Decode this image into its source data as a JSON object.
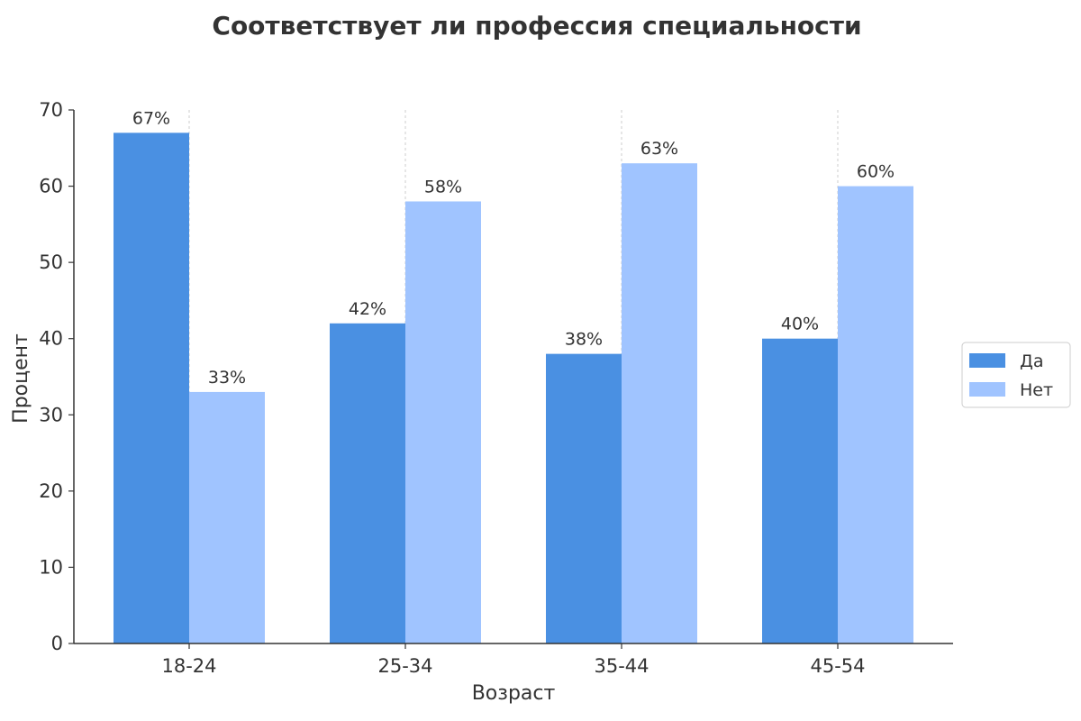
{
  "chart_data": {
    "type": "bar",
    "title": "Соответствует ли профессия специальности",
    "xlabel": "Возраст",
    "ylabel": "Процент",
    "categories": [
      "18-24",
      "25-34",
      "35-44",
      "45-54"
    ],
    "series": [
      {
        "name": "Да",
        "values": [
          67,
          42,
          38,
          40
        ],
        "labels": [
          "67%",
          "42%",
          "38%",
          "40%"
        ],
        "color": "#4a90e2"
      },
      {
        "name": "Нет",
        "values": [
          33,
          58,
          63,
          60
        ],
        "labels": [
          "33%",
          "58%",
          "63%",
          "60%"
        ],
        "color": "#a0c4ff"
      }
    ],
    "ylim": [
      0,
      70
    ],
    "yticks": [
      0,
      10,
      20,
      30,
      40,
      50,
      60,
      70
    ],
    "grid": "vertical dashed lines at category centers",
    "legend_position": "right"
  }
}
